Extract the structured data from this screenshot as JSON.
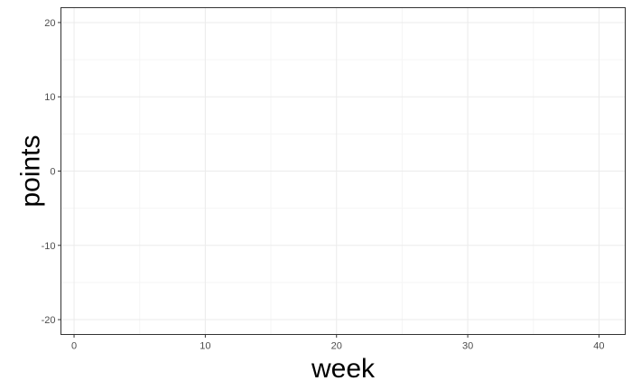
{
  "chart_data": {
    "type": "scatter",
    "title": "",
    "xlabel": "week",
    "ylabel": "points",
    "xlim": [
      -1,
      42
    ],
    "ylim": [
      -22,
      22
    ],
    "x_ticks": [
      0,
      10,
      20,
      30,
      40
    ],
    "y_ticks": [
      -20,
      -10,
      0,
      10,
      20
    ],
    "x_minor": [
      5,
      15,
      25,
      35
    ],
    "y_minor": [
      -15,
      -5,
      5,
      15
    ],
    "grid": true,
    "legend": "none",
    "series": [],
    "colors": {
      "panel_border": "#333333",
      "grid_major": "#ebebeb",
      "grid_minor": "#f5f5f5",
      "tick_text": "#4d4d4d",
      "axis_title": "#000000"
    }
  }
}
